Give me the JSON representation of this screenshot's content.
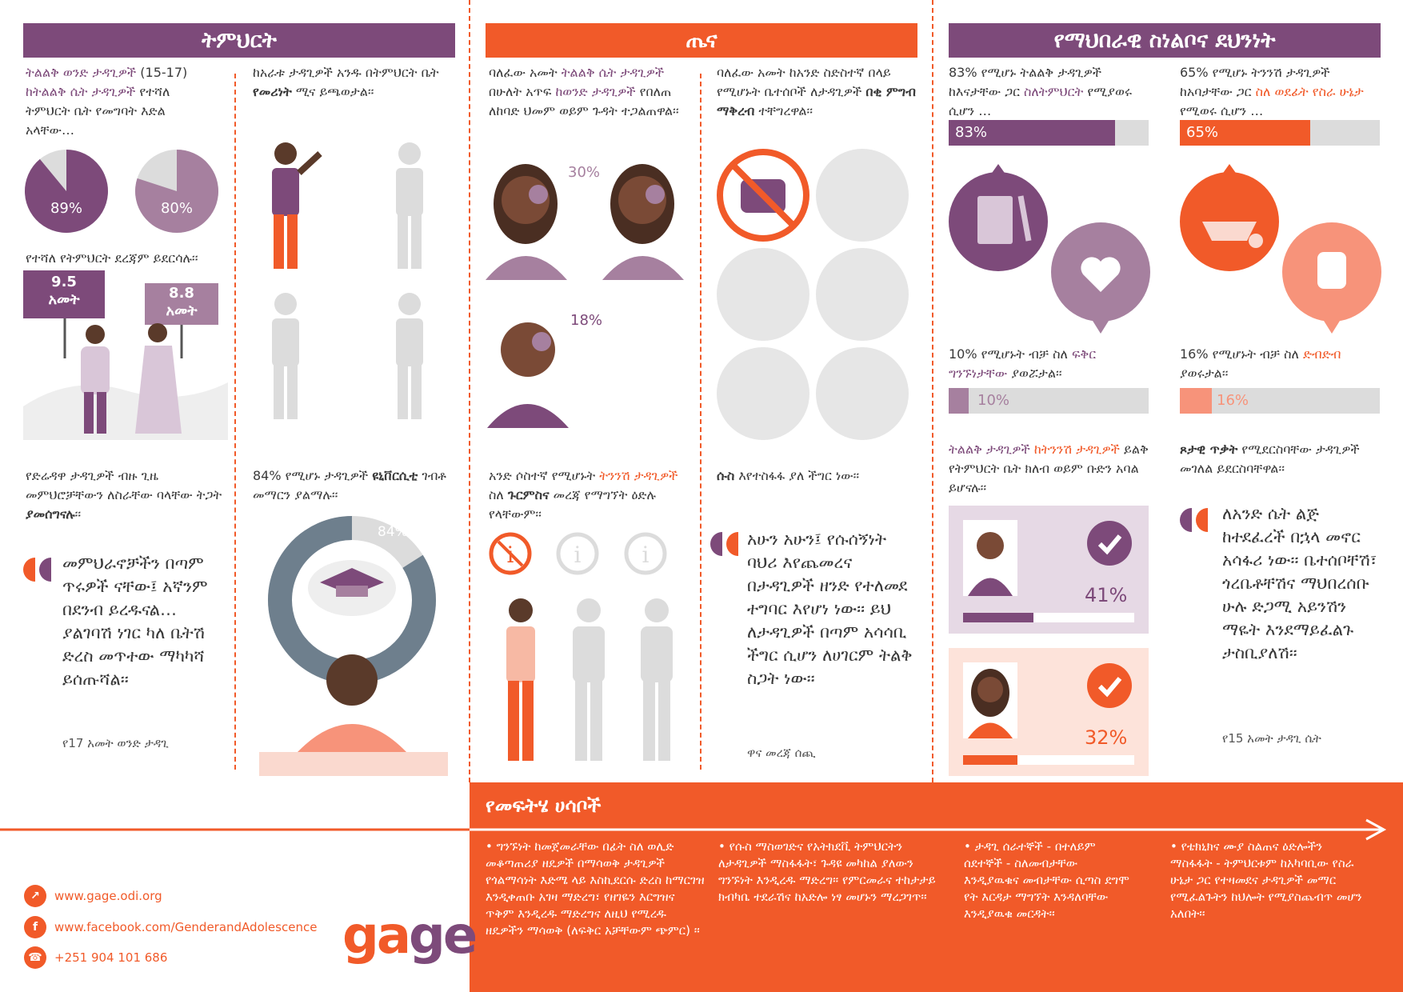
{
  "sections": {
    "education": "ትምህርት",
    "health": "ጤና",
    "social": "የማህበራዊ ስነልቦና ደህንነት",
    "solutions": "የመፍትሄ ሀሳቦች"
  },
  "colors": {
    "purple": "#7d4a7a",
    "light_purple": "#a6809f",
    "orange": "#f15a29",
    "salmon": "#f7937a",
    "gray": "#dcdcdc"
  },
  "education": {
    "intro_1": "ትልልቅ ወንድ ታዳጊዎች",
    "intro_2": " (15-17) ",
    "intro_3": "ከትልልቅ ሴት ታዳጊዎች",
    "intro_4": " የተሻለ ትምህርት ቤት የመግባት እድል አላቸው…",
    "pie_boys": "89%",
    "pie_girls": "80%",
    "grade_text": "የተሻለ የትምህርት ደረጃም ይደርሳሉ፡፡",
    "sign_boys_num": "9.5",
    "sign_boys_unit": "አመት",
    "sign_girls_num": "8.8",
    "sign_girls_unit": "አመት",
    "role_1": "ከአራቱ ታዳጊዎች አንዱ በትምህርት ቤት ",
    "role_2": "የመሪነት",
    "role_3": " ሚና ይጫወታል፡፡",
    "teacher_1": "የድሬዳዋ ታዳጊዎች ብዙ ጊዜ መምህሮቻቸውን ለስራቸው ባላቸው ትጋት ",
    "teacher_2": "ያመሰግናሉ",
    "teacher_3": "፡፡",
    "univ_1": "84% የሚሆኑ ታዳጊዎች ",
    "univ_2": "ዩኒቨርሲቲ",
    "univ_3": " ገብቶ መማርን ያልማሉ፡፡",
    "donut_label": "84%",
    "quote": "መምህራኖቻችን በጣም ጥሩዎች ናቸው፤ አኛንም በደንብ ይረዱናል… ያልገባሽ ነገር ካለ ቤትሽ ድረስ መጥተው ማካካሻ ይሰጡሻል፡፡",
    "quote_cite": "የ17 አመት ወንድ ታዳጊ"
  },
  "health": {
    "violence_1": "ባለፈው አመት ",
    "violence_2": "ትልልቅ ሴት ታዳጊዎች",
    "violence_3": " በሁለት አጥፍ ",
    "violence_4": "ከወንድ ታዳጊዎች",
    "violence_5": " የበለጠ ለከባድ ህመም ወይም ጉዳት ተጋልጠዋል፡፡",
    "pct_girls": "30%",
    "pct_boys": "18%",
    "food_1": "ባለፈው አመት ከአንድ ስድስተኛ በላይ የሚሆኑት ቤተሰቦች ለታዳጊዎች ",
    "food_2": "በቂ ምግብ ማቅረብ",
    "food_3": " ተቸግረዋል፡፡",
    "puberty_1": "አንድ ሶስተኛ የሚሆኑት ",
    "puberty_2": "ትንንሽ ታዳጊዎች",
    "puberty_3": " ስለ ",
    "puberty_4": "ጉርምስና",
    "puberty_5": " መረጃ የማግኘት ዕድሉ የላቸውም፡፡",
    "khat_1": "ሱስ",
    "khat_2": " እየተስፋፋ ያለ ችግር ነው፡፡",
    "quote": "አሁን አሁን፤ የሱሰኝነት ባህሪ እየጨመረና በታዳጊዎች ዘንድ የተለመደ ተግባር እየሆነ ነው፡፡ ይህ ለታዳጊዎች በጣም አሳሳቢ ችግር ሲሆን ለሀገርም ትልቅ ስጋት ነው፡፡",
    "quote_cite": "ዋና መረጃ ሰጪ"
  },
  "social": {
    "mother_1": "83% የሚሆኑ ትልልቅ ታዳጊዎች ከእናታቸው ጋር ",
    "mother_2": "ስለትምህርት",
    "mother_3": " የሚያወሩ ሲሆን …",
    "mother_bar": "83%",
    "mother_value": 0.83,
    "father_1": "65% የሚሆኑ ትንንሽ ታዳጊዎች ከአባታቸው ጋር ",
    "father_2": "ስለ ወደፊት የስራ ሁኔታ",
    "father_3": " የሚወሩ ሲሆን …",
    "father_bar": "65%",
    "father_value": 0.65,
    "love_1": "10% የሚሆኑት ብቻ ስለ ",
    "love_2": "ፍቅር ግንኙነታቸው",
    "love_3": " ያወሯታል፡፡",
    "love_bar": "10%",
    "love_value": 0.1,
    "violence_1": "16% የሚሆኑት ብቻ ስለ ",
    "violence_2": "ድብድብ",
    "violence_3": " ያወሩታል፡፡",
    "violence_bar": "16%",
    "violence_value": 0.16,
    "member_1": "ትልልቅ ታዳጊዎች",
    "member_2": " ",
    "member_3": "ከትንንሽ ታዳጊዎች",
    "member_4": " ይልቅ የትምህርት ቤት ክለብ ወይም ቡድን አባል ይሆናሉ፡፡",
    "member_girls": "41%",
    "member_girls_value": 0.41,
    "member_boys": "32%",
    "member_boys_value": 0.32,
    "sexual_1": "ጾታዊ ጥቃት",
    "sexual_2": " የሚደርስባቸው ታዳጊዎች መገለል ይደርስባቸዋል፡፡",
    "quote": "ለአንድ ሴት ልጅ ከተደፈረች በኋላ መኖር አሳፋሪ ነው፡፡ ቤተሰቦቸሽ፣ ጎረቤቶቸሽና ማህበረሰቡ ሁሉ ድጋሚ አይንሽን ማዬት እንደማይፈልጉ ታስቢያለሽ፡፡",
    "quote_cite": "የ15 አመት ታዳጊ ሴት"
  },
  "solutions": [
    "• ግንኙነት ከመጀመራቸው በፊት ስለ ወሊድ መቆጣጠሪያ ዘዴዎች በማሳወቅ ታዳጊዎች የጎልማሳነት እድሜ ላይ እስኪደርሱ ድረስ ከማርገዝ እንዲቀጠቡ አገዛ ማድረግ፣ የዘገዬን እርግዝና ጥቅም እንዲረዱ ማድረግና ለዚህ የሚረዱ ዘዴዎችን ማሳወቅ (ለፍቅር አቻቸውም ጭምር) ፡፡",
    "• የሱስ ማስወገድና የአትክደቪ ትምህርትን ለታዳጊዎች ማስፋፋት፣ ጉዳዩ መካከል ያለውን ግንኙነት እንዲረዱ ማድረግ፡፡ የምርመራና ተከታታይ ክብካቤ ተደራሽና ከአድሎ ነፃ መሆኑን ማረጋገጥ፡፡",
    "• ታዳጊ ሰራተኞች - በተለይም ሰደተኞች - ስለመብታቸው እንዲያዉቁና መብታቸው ሲጣስ ደግሞ የት እርዳታ ማግኘት እንዳለባቸው እንዲያዉቁ መርዳት፡፡",
    "• የቴክኒክና ሙያ ስልጠና ዕድሎችን ማስፋፋት - ትምህርቱም ከአካባቢው የስራ ሁኔታ ጋር የተዛመደና ታዳጊዎች መማር የሚፈልጉትን ከህሎት የሚያስጨብጥ መሆን አለበት፡፡"
  ],
  "contact": {
    "web": "www.gage.odi.org",
    "facebook": "www.facebook.com/GenderandAdolescence",
    "phone": "+251 904 101 686",
    "logo": "gage"
  }
}
